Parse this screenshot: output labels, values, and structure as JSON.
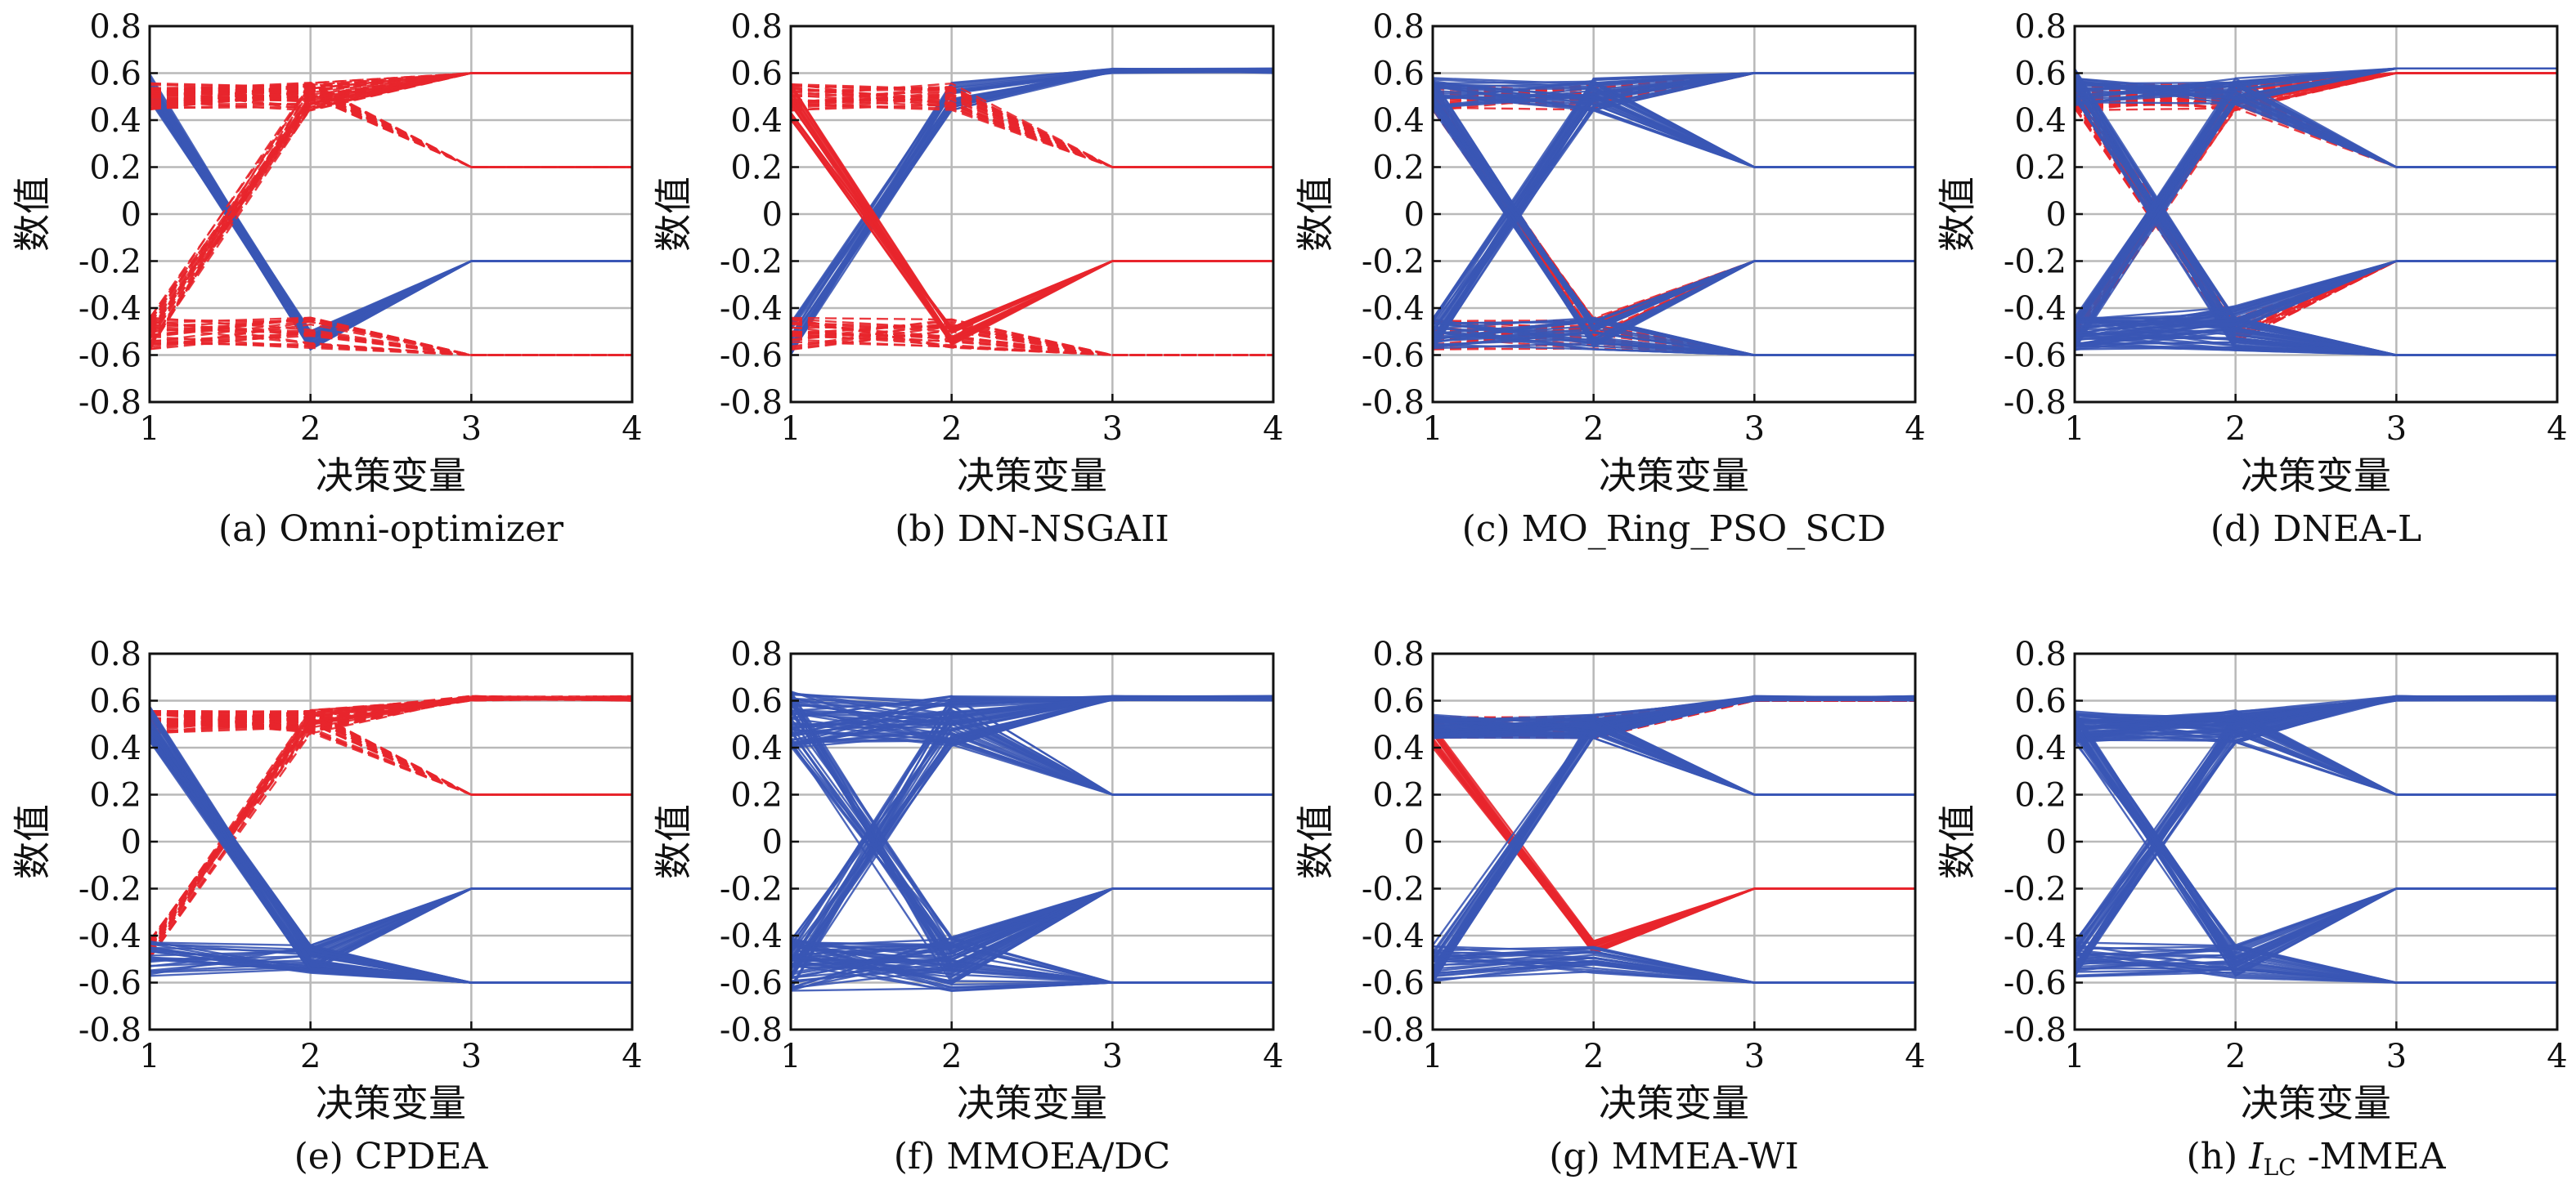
{
  "colors": {
    "blue": "#3a57b5",
    "red": "#e8262c",
    "grid": "#b9b9b9"
  },
  "chart_data": [
    {
      "type": "line",
      "caption": "(a) Omni-optimizer",
      "xlabel": "决策变量",
      "ylabel": "数值",
      "x": [
        1,
        2,
        3,
        4
      ],
      "xlim": [
        1,
        4
      ],
      "ylim": [
        -0.8,
        0.8
      ],
      "xticks": [
        "1",
        "2",
        "3",
        "4"
      ],
      "yticks": [
        "-0.8",
        "-0.6",
        "-0.4",
        "-0.2",
        "0",
        "0.2",
        "0.4",
        "0.6",
        "0.8"
      ],
      "grid": true,
      "series": [
        {
          "color": "blue",
          "style": "solid",
          "bands": [
            {
              "from": [
                0.47,
                -0.49,
                -0.2,
                -0.2
              ],
              "to": [
                0.6,
                -0.58,
                -0.2,
                -0.2
              ]
            }
          ]
        },
        {
          "color": "red",
          "style": "dashed",
          "bands": [
            {
              "from": [
                0.44,
                0.44,
                0.6,
                0.6
              ],
              "to": [
                0.56,
                0.56,
                0.6,
                0.6
              ]
            },
            {
              "from": [
                0.44,
                0.5,
                0.2,
                0.2
              ],
              "to": [
                0.56,
                0.56,
                0.2,
                0.2
              ]
            },
            {
              "from": [
                -0.44,
                0.44,
                0.6,
                0.6
              ],
              "to": [
                -0.58,
                0.56,
                0.6,
                0.6
              ]
            },
            {
              "from": [
                -0.44,
                -0.44,
                -0.6,
                -0.6
              ],
              "to": [
                -0.58,
                -0.58,
                -0.6,
                -0.6
              ]
            }
          ]
        }
      ]
    },
    {
      "type": "line",
      "caption": "(b) DN-NSGAII",
      "xlabel": "决策变量",
      "ylabel": "数值",
      "x": [
        1,
        2,
        3,
        4
      ],
      "xlim": [
        1,
        4
      ],
      "ylim": [
        -0.8,
        0.8
      ],
      "xticks": [
        "1",
        "2",
        "3",
        "4"
      ],
      "yticks": [
        "-0.8",
        "-0.6",
        "-0.4",
        "-0.2",
        "0",
        "0.2",
        "0.4",
        "0.6",
        "0.8"
      ],
      "grid": true,
      "series": [
        {
          "color": "blue",
          "style": "solid",
          "bands": [
            {
              "from": [
                -0.44,
                0.44,
                0.6,
                0.6
              ],
              "to": [
                -0.6,
                0.56,
                0.62,
                0.62
              ]
            }
          ]
        },
        {
          "color": "red",
          "style": "dashed",
          "bands": [
            {
              "from": [
                0.44,
                0.44,
                0.2,
                0.2
              ],
              "to": [
                0.56,
                0.56,
                0.2,
                0.2
              ]
            },
            {
              "from": [
                -0.44,
                -0.44,
                -0.6,
                -0.6
              ],
              "to": [
                -0.58,
                -0.58,
                -0.6,
                -0.6
              ]
            }
          ]
        },
        {
          "color": "red",
          "style": "solid",
          "bands": [
            {
              "from": [
                0.4,
                -0.48,
                -0.2,
                -0.2
              ],
              "to": [
                0.56,
                -0.56,
                -0.2,
                -0.2
              ]
            }
          ]
        }
      ]
    },
    {
      "type": "line",
      "caption": "(c) MO_Ring_PSO_SCD",
      "xlabel": "决策变量",
      "ylabel": "数值",
      "x": [
        1,
        2,
        3,
        4
      ],
      "xlim": [
        1,
        4
      ],
      "ylim": [
        -0.8,
        0.8
      ],
      "xticks": [
        "1",
        "2",
        "3",
        "4"
      ],
      "yticks": [
        "-0.8",
        "-0.6",
        "-0.4",
        "-0.2",
        "0",
        "0.2",
        "0.4",
        "0.6",
        "0.8"
      ],
      "grid": true,
      "series": [
        {
          "color": "red",
          "style": "dashed",
          "bands": [
            {
              "from": [
                0.44,
                0.44,
                0.6,
                0.6
              ],
              "to": [
                0.56,
                0.56,
                0.6,
                0.6
              ]
            },
            {
              "from": [
                -0.44,
                -0.44,
                -0.6,
                -0.6
              ],
              "to": [
                -0.58,
                -0.58,
                -0.6,
                -0.6
              ]
            },
            {
              "from": [
                0.44,
                -0.44,
                -0.2,
                -0.2
              ],
              "to": [
                0.56,
                -0.56,
                -0.2,
                -0.2
              ]
            }
          ]
        },
        {
          "color": "blue",
          "style": "solid",
          "bands": [
            {
              "from": [
                -0.44,
                0.44,
                0.6,
                0.6
              ],
              "to": [
                -0.58,
                0.58,
                0.6,
                0.6
              ]
            },
            {
              "from": [
                0.44,
                0.44,
                0.2,
                0.2
              ],
              "to": [
                0.58,
                0.58,
                0.2,
                0.2
              ]
            },
            {
              "from": [
                0.44,
                -0.44,
                -0.2,
                -0.2
              ],
              "to": [
                0.58,
                -0.58,
                -0.2,
                -0.2
              ]
            },
            {
              "from": [
                -0.44,
                -0.44,
                -0.6,
                -0.6
              ],
              "to": [
                -0.58,
                -0.58,
                -0.6,
                -0.6
              ]
            }
          ]
        }
      ]
    },
    {
      "type": "line",
      "caption": "(d) DNEA-L",
      "xlabel": "决策变量",
      "ylabel": "数值",
      "x": [
        1,
        2,
        3,
        4
      ],
      "xlim": [
        1,
        4
      ],
      "ylim": [
        -0.8,
        0.8
      ],
      "xticks": [
        "1",
        "2",
        "3",
        "4"
      ],
      "yticks": [
        "-0.8",
        "-0.6",
        "-0.4",
        "-0.2",
        "0",
        "0.2",
        "0.4",
        "0.6",
        "0.8"
      ],
      "grid": true,
      "series": [
        {
          "color": "red",
          "style": "dashed",
          "bands": [
            {
              "from": [
                0.44,
                0.44,
                0.6,
                0.6
              ],
              "to": [
                0.56,
                0.56,
                0.6,
                0.6
              ]
            },
            {
              "from": [
                0.44,
                0.44,
                0.2,
                0.2
              ],
              "to": [
                0.56,
                0.56,
                0.2,
                0.2
              ]
            },
            {
              "from": [
                -0.44,
                0.44,
                0.6,
                0.6
              ],
              "to": [
                -0.56,
                0.56,
                0.6,
                0.6
              ]
            },
            {
              "from": [
                0.44,
                -0.44,
                -0.2,
                -0.2
              ],
              "to": [
                0.56,
                -0.56,
                -0.2,
                -0.2
              ]
            }
          ]
        },
        {
          "color": "blue",
          "style": "solid",
          "bands": [
            {
              "from": [
                -0.44,
                -0.44,
                -0.6,
                -0.6
              ],
              "to": [
                -0.6,
                -0.58,
                -0.6,
                -0.6
              ]
            },
            {
              "from": [
                0.48,
                -0.44,
                -0.6,
                -0.6
              ],
              "to": [
                0.62,
                -0.58,
                -0.6,
                -0.6
              ]
            },
            {
              "from": [
                -0.44,
                0.46,
                0.62,
                0.62
              ],
              "to": [
                -0.58,
                0.58,
                0.62,
                0.62
              ]
            },
            {
              "from": [
                0.46,
                0.46,
                0.2,
                0.2
              ],
              "to": [
                0.58,
                0.58,
                0.2,
                0.2
              ]
            },
            {
              "from": [
                -0.44,
                -0.38,
                -0.2,
                -0.2
              ],
              "to": [
                -0.58,
                -0.5,
                -0.2,
                -0.2
              ]
            }
          ]
        }
      ]
    },
    {
      "type": "line",
      "caption": "(e) CPDEA",
      "xlabel": "决策变量",
      "ylabel": "数值",
      "x": [
        1,
        2,
        3,
        4
      ],
      "xlim": [
        1,
        4
      ],
      "ylim": [
        -0.8,
        0.8
      ],
      "xticks": [
        "1",
        "2",
        "3",
        "4"
      ],
      "yticks": [
        "-0.8",
        "-0.6",
        "-0.4",
        "-0.2",
        "0",
        "0.2",
        "0.4",
        "0.6",
        "0.8"
      ],
      "grid": true,
      "series": [
        {
          "color": "red",
          "style": "dashed",
          "bands": [
            {
              "from": [
                0.46,
                0.46,
                0.6,
                0.6
              ],
              "to": [
                0.56,
                0.56,
                0.62,
                0.62
              ]
            },
            {
              "from": [
                0.46,
                0.46,
                0.2,
                0.2
              ],
              "to": [
                0.56,
                0.56,
                0.2,
                0.2
              ]
            },
            {
              "from": [
                -0.42,
                0.46,
                0.6,
                0.6
              ],
              "to": [
                -0.5,
                0.56,
                0.62,
                0.62
              ]
            }
          ]
        },
        {
          "color": "blue",
          "style": "solid",
          "bands": [
            {
              "from": [
                0.42,
                -0.44,
                -0.2,
                -0.2
              ],
              "to": [
                0.58,
                -0.56,
                -0.2,
                -0.2
              ]
            },
            {
              "from": [
                -0.42,
                -0.44,
                -0.6,
                -0.6
              ],
              "to": [
                -0.58,
                -0.56,
                -0.6,
                -0.6
              ]
            },
            {
              "from": [
                0.42,
                -0.44,
                -0.6,
                -0.6
              ],
              "to": [
                0.58,
                -0.56,
                -0.6,
                -0.6
              ]
            }
          ]
        }
      ]
    },
    {
      "type": "line",
      "caption": "(f) MMOEA/DC",
      "xlabel": "决策变量",
      "ylabel": "数值",
      "x": [
        1,
        2,
        3,
        4
      ],
      "xlim": [
        1,
        4
      ],
      "ylim": [
        -0.8,
        0.8
      ],
      "xticks": [
        "1",
        "2",
        "3",
        "4"
      ],
      "yticks": [
        "-0.8",
        "-0.6",
        "-0.4",
        "-0.2",
        "0",
        "0.2",
        "0.4",
        "0.6",
        "0.8"
      ],
      "grid": true,
      "series": [
        {
          "color": "blue",
          "style": "solid",
          "bands": [
            {
              "from": [
                0.4,
                0.4,
                0.6,
                0.6
              ],
              "to": [
                0.64,
                0.62,
                0.62,
                0.62
              ]
            },
            {
              "from": [
                -0.4,
                0.4,
                0.6,
                0.6
              ],
              "to": [
                -0.64,
                0.62,
                0.62,
                0.62
              ]
            },
            {
              "from": [
                0.4,
                0.4,
                0.2,
                0.2
              ],
              "to": [
                0.64,
                0.62,
                0.2,
                0.2
              ]
            },
            {
              "from": [
                0.4,
                -0.4,
                -0.2,
                -0.2
              ],
              "to": [
                0.64,
                -0.64,
                -0.2,
                -0.2
              ]
            },
            {
              "from": [
                -0.4,
                -0.4,
                -0.6,
                -0.6
              ],
              "to": [
                -0.64,
                -0.64,
                -0.6,
                -0.6
              ]
            },
            {
              "from": [
                -0.4,
                -0.4,
                -0.2,
                -0.2
              ],
              "to": [
                -0.64,
                -0.64,
                -0.2,
                -0.2
              ]
            }
          ]
        }
      ]
    },
    {
      "type": "line",
      "caption": "(g) MMEA-WI",
      "xlabel": "决策变量",
      "ylabel": "数值",
      "x": [
        1,
        2,
        3,
        4
      ],
      "xlim": [
        1,
        4
      ],
      "ylim": [
        -0.8,
        0.8
      ],
      "xticks": [
        "1",
        "2",
        "3",
        "4"
      ],
      "yticks": [
        "-0.8",
        "-0.6",
        "-0.4",
        "-0.2",
        "0",
        "0.2",
        "0.4",
        "0.6",
        "0.8"
      ],
      "grid": true,
      "series": [
        {
          "color": "red",
          "style": "dashed",
          "bands": [
            {
              "from": [
                0.44,
                0.44,
                0.6,
                0.6
              ],
              "to": [
                0.54,
                0.54,
                0.6,
                0.6
              ]
            }
          ]
        },
        {
          "color": "red",
          "style": "solid",
          "bands": [
            {
              "from": [
                0.4,
                -0.42,
                -0.2,
                -0.2
              ],
              "to": [
                0.5,
                -0.48,
                -0.2,
                -0.2
              ]
            }
          ]
        },
        {
          "color": "blue",
          "style": "solid",
          "bands": [
            {
              "from": [
                0.44,
                0.44,
                0.6,
                0.6
              ],
              "to": [
                0.54,
                0.54,
                0.62,
                0.62
              ]
            },
            {
              "from": [
                -0.44,
                0.44,
                0.6,
                0.6
              ],
              "to": [
                -0.6,
                0.54,
                0.62,
                0.62
              ]
            },
            {
              "from": [
                0.44,
                0.44,
                0.2,
                0.2
              ],
              "to": [
                0.54,
                0.54,
                0.2,
                0.2
              ]
            },
            {
              "from": [
                -0.44,
                -0.44,
                -0.6,
                -0.6
              ],
              "to": [
                -0.6,
                -0.56,
                -0.6,
                -0.6
              ]
            }
          ]
        }
      ]
    },
    {
      "type": "line",
      "caption": "(h) I_LC -MMEA",
      "caption_main": "I",
      "caption_sub": "LC",
      "caption_rest": " -MMEA",
      "xlabel": "决策变量",
      "ylabel": "数值",
      "x": [
        1,
        2,
        3,
        4
      ],
      "xlim": [
        1,
        4
      ],
      "ylim": [
        -0.8,
        0.8
      ],
      "xticks": [
        "1",
        "2",
        "3",
        "4"
      ],
      "yticks": [
        "-0.8",
        "-0.6",
        "-0.4",
        "-0.2",
        "0",
        "0.2",
        "0.4",
        "0.6",
        "0.8"
      ],
      "grid": true,
      "series": [
        {
          "color": "blue",
          "style": "solid",
          "bands": [
            {
              "from": [
                0.42,
                0.42,
                0.6,
                0.6
              ],
              "to": [
                0.56,
                0.56,
                0.62,
                0.62
              ]
            },
            {
              "from": [
                -0.42,
                0.42,
                0.6,
                0.6
              ],
              "to": [
                -0.58,
                0.56,
                0.62,
                0.62
              ]
            },
            {
              "from": [
                0.42,
                0.42,
                0.2,
                0.2
              ],
              "to": [
                0.56,
                0.56,
                0.2,
                0.2
              ]
            },
            {
              "from": [
                0.42,
                -0.44,
                -0.2,
                -0.2
              ],
              "to": [
                0.56,
                -0.58,
                -0.2,
                -0.2
              ]
            },
            {
              "from": [
                -0.42,
                -0.44,
                -0.6,
                -0.6
              ],
              "to": [
                -0.58,
                -0.58,
                -0.6,
                -0.6
              ]
            }
          ]
        }
      ]
    }
  ]
}
